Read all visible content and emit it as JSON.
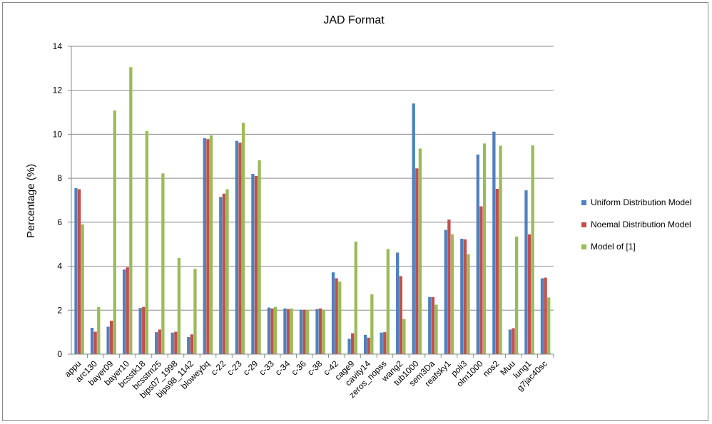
{
  "chart_data": {
    "type": "bar",
    "title": "JAD Format",
    "ylabel": "Percentage (%)",
    "xlabel": "",
    "ylim": [
      0,
      14
    ],
    "yticks": [
      "0",
      "2",
      "4",
      "6",
      "8",
      "10",
      "12",
      "14"
    ],
    "grid": true,
    "legend_position": "right",
    "categories": [
      "appu",
      "arc130",
      "bayer09",
      "bayer10",
      "bcsstk18",
      "bcsstm25",
      "bips07_1998",
      "bips98_1142",
      "bloweybq",
      "c-22",
      "c-23",
      "c-29",
      "c-33",
      "c-34",
      "c-36",
      "c-38",
      "c-42",
      "cage9",
      "cavity14",
      "zeros_nopss",
      "wang2",
      "tub1000",
      "sem3Da",
      "reafsky1",
      "poli3",
      "olm1000",
      "nos2",
      "Muu",
      "lung1",
      "g7jac40sc"
    ],
    "series": [
      {
        "name": "Uniform Distribution Model",
        "color": "#4F81BD",
        "values": [
          7.55,
          1.2,
          1.25,
          3.85,
          2.1,
          1.0,
          0.98,
          0.78,
          9.82,
          7.15,
          9.7,
          8.2,
          2.12,
          2.08,
          2.02,
          2.05,
          3.72,
          0.7,
          0.88,
          0.98,
          4.62,
          11.4,
          2.6,
          5.65,
          5.25,
          9.08,
          10.12,
          1.12,
          7.45,
          3.45
        ]
      },
      {
        "name": "Noemal Distribution Model",
        "color": "#C0504D",
        "values": [
          7.5,
          1.02,
          1.52,
          3.95,
          2.15,
          1.12,
          1.02,
          0.9,
          9.78,
          7.3,
          9.62,
          8.1,
          2.08,
          2.05,
          2.02,
          2.08,
          3.45,
          0.95,
          0.75,
          1.0,
          3.55,
          8.45,
          2.6,
          6.12,
          5.22,
          6.72,
          7.52,
          1.18,
          5.45,
          3.48
        ]
      },
      {
        "name": "Model of [1]",
        "color": "#9BBB59",
        "values": [
          5.9,
          2.15,
          11.08,
          13.05,
          10.15,
          8.22,
          4.38,
          3.88,
          9.95,
          7.5,
          10.52,
          8.82,
          2.15,
          2.08,
          2.02,
          2.02,
          3.3,
          5.12,
          2.72,
          4.78,
          1.6,
          9.35,
          2.25,
          5.45,
          4.55,
          9.58,
          9.48,
          5.35,
          9.5,
          2.58
        ]
      }
    ]
  }
}
